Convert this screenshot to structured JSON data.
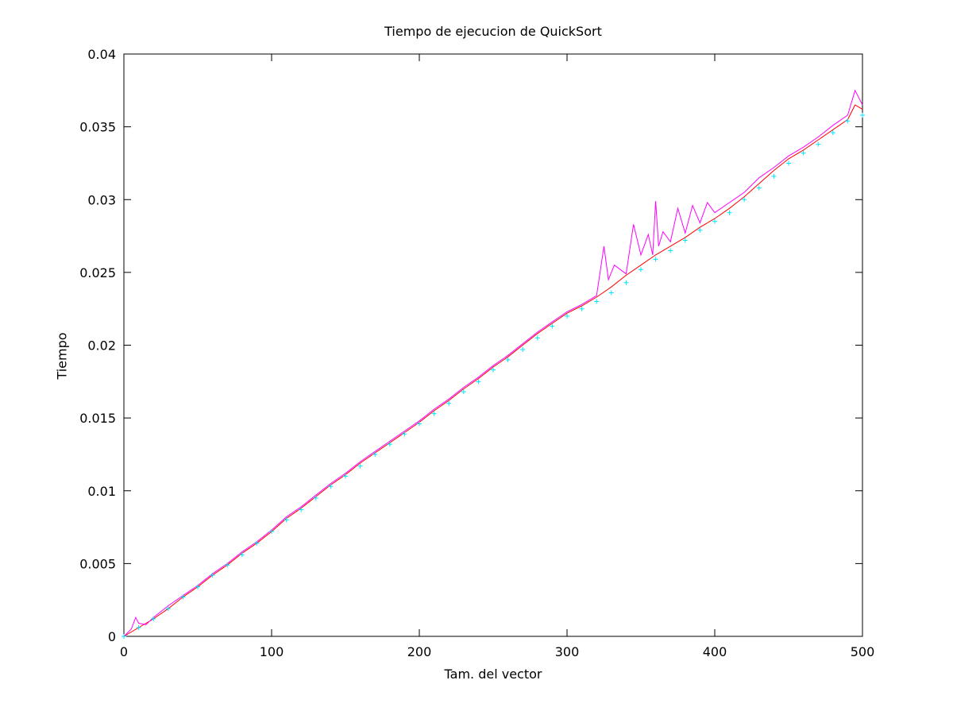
{
  "chart_data": {
    "type": "line",
    "title": "Tiempo de ejecucion de QuickSort",
    "xlabel": "Tam. del vector",
    "ylabel": "Tiempo",
    "xlim": [
      0,
      500
    ],
    "ylim": [
      0,
      0.04
    ],
    "x_ticks": [
      "0",
      "100",
      "200",
      "300",
      "400",
      "500"
    ],
    "y_ticks": [
      "0",
      "0.005",
      "0.01",
      "0.015",
      "0.02",
      "0.025",
      "0.03",
      "0.035",
      "0.04"
    ],
    "x_tick_values": [
      0,
      100,
      200,
      300,
      400,
      500
    ],
    "y_tick_values": [
      0,
      0.005,
      0.01,
      0.015,
      0.02,
      0.025,
      0.03,
      0.035,
      0.04
    ],
    "grid": false,
    "legend": "none",
    "series": [
      {
        "style": "line",
        "color": "#ff0000",
        "x": [
          0,
          10,
          20,
          30,
          40,
          50,
          60,
          70,
          80,
          90,
          100,
          110,
          120,
          130,
          140,
          150,
          160,
          170,
          180,
          190,
          200,
          210,
          220,
          230,
          240,
          250,
          260,
          270,
          280,
          290,
          300,
          310,
          320,
          330,
          340,
          350,
          360,
          370,
          380,
          390,
          400,
          410,
          420,
          430,
          440,
          450,
          460,
          470,
          480,
          490,
          495,
          500
        ],
        "y": [
          0,
          0.0006,
          0.0012,
          0.0019,
          0.0027,
          0.0034,
          0.0042,
          0.0049,
          0.0057,
          0.0064,
          0.0072,
          0.0081,
          0.0088,
          0.0096,
          0.0104,
          0.0111,
          0.0119,
          0.0126,
          0.0133,
          0.014,
          0.0147,
          0.0155,
          0.0162,
          0.017,
          0.0177,
          0.0185,
          0.0192,
          0.02,
          0.0208,
          0.0215,
          0.0222,
          0.0227,
          0.0233,
          0.024,
          0.0248,
          0.0255,
          0.0262,
          0.0268,
          0.0274,
          0.0281,
          0.0287,
          0.0294,
          0.0302,
          0.0311,
          0.032,
          0.0328,
          0.0334,
          0.0341,
          0.0348,
          0.0355,
          0.0365,
          0.0362
        ]
      },
      {
        "style": "line",
        "color": "#ff00ff",
        "x": [
          0,
          5,
          8,
          10,
          15,
          20,
          30,
          40,
          50,
          60,
          70,
          80,
          90,
          100,
          110,
          120,
          130,
          140,
          150,
          160,
          170,
          180,
          190,
          200,
          210,
          220,
          230,
          240,
          250,
          260,
          270,
          280,
          290,
          300,
          310,
          320,
          325,
          328,
          332,
          340,
          345,
          350,
          355,
          358,
          360,
          362,
          365,
          370,
          375,
          380,
          385,
          390,
          395,
          400,
          410,
          420,
          430,
          440,
          450,
          460,
          470,
          480,
          490,
          495,
          500
        ],
        "y": [
          0,
          0.0005,
          0.0013,
          0.0009,
          0.0008,
          0.0013,
          0.0021,
          0.0028,
          0.0035,
          0.0043,
          0.005,
          0.0058,
          0.0065,
          0.0073,
          0.0082,
          0.0089,
          0.0097,
          0.0105,
          0.0112,
          0.012,
          0.0127,
          0.0134,
          0.0141,
          0.0148,
          0.0156,
          0.0163,
          0.0171,
          0.0178,
          0.0186,
          0.0193,
          0.0201,
          0.0209,
          0.0216,
          0.0223,
          0.0228,
          0.0234,
          0.0268,
          0.0245,
          0.0255,
          0.0249,
          0.0283,
          0.0262,
          0.0276,
          0.0262,
          0.0299,
          0.0268,
          0.0278,
          0.0271,
          0.0294,
          0.0277,
          0.0296,
          0.0284,
          0.0298,
          0.0291,
          0.0298,
          0.0305,
          0.0315,
          0.0322,
          0.033,
          0.0336,
          0.0343,
          0.0351,
          0.0358,
          0.0375,
          0.0365
        ]
      },
      {
        "style": "points",
        "marker": "+",
        "color": "#00e5ff",
        "x": [
          0,
          10,
          20,
          30,
          40,
          50,
          60,
          70,
          80,
          90,
          100,
          110,
          120,
          130,
          140,
          150,
          160,
          170,
          180,
          190,
          200,
          210,
          220,
          230,
          240,
          250,
          260,
          270,
          280,
          290,
          300,
          310,
          320,
          330,
          340,
          350,
          360,
          370,
          380,
          390,
          400,
          410,
          420,
          430,
          440,
          450,
          460,
          470,
          480,
          490,
          500
        ],
        "y": [
          0,
          0.0006,
          0.0012,
          0.0019,
          0.0027,
          0.0034,
          0.0042,
          0.0049,
          0.0056,
          0.0064,
          0.0072,
          0.008,
          0.0087,
          0.0095,
          0.0103,
          0.011,
          0.0117,
          0.0125,
          0.0132,
          0.0139,
          0.0146,
          0.0153,
          0.016,
          0.0168,
          0.0175,
          0.0183,
          0.019,
          0.0197,
          0.0205,
          0.0213,
          0.022,
          0.0225,
          0.023,
          0.0236,
          0.0243,
          0.0252,
          0.0259,
          0.0265,
          0.0272,
          0.0279,
          0.0285,
          0.0291,
          0.03,
          0.0308,
          0.0316,
          0.0325,
          0.0332,
          0.0338,
          0.0346,
          0.0354,
          0.0358
        ]
      }
    ]
  }
}
